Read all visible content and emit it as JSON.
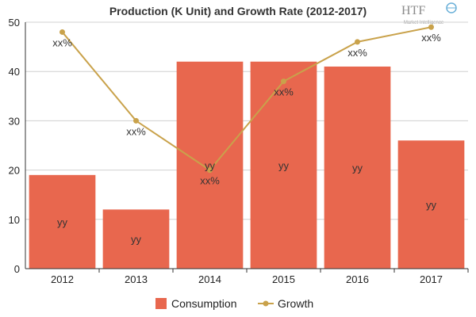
{
  "chart_data": {
    "type": "bar",
    "title": "Production (K Unit) and Growth Rate (2012-2017)",
    "categories": [
      "2012",
      "2013",
      "2014",
      "2015",
      "2016",
      "2017"
    ],
    "ylim": [
      0,
      50
    ],
    "yticks": [
      "0",
      "10",
      "20",
      "30",
      "40",
      "50"
    ],
    "grid": true,
    "legend_position": "bottom",
    "series": [
      {
        "name": "Consumption",
        "kind": "bar",
        "color": "#e8674e",
        "values": [
          19,
          12,
          42,
          42,
          41,
          26
        ],
        "labels": [
          "yy",
          "yy",
          "yy",
          "yy",
          "yy",
          "yy"
        ]
      },
      {
        "name": "Growth",
        "kind": "line",
        "color": "#c9a24b",
        "values": [
          48,
          30,
          20,
          38,
          46,
          49
        ],
        "labels": [
          "xx%",
          "xx%",
          "xx%",
          "xx%",
          "xx%",
          "xx%"
        ]
      }
    ]
  },
  "logo": {
    "text": "HTF",
    "subtext": "Market Intelligence"
  }
}
